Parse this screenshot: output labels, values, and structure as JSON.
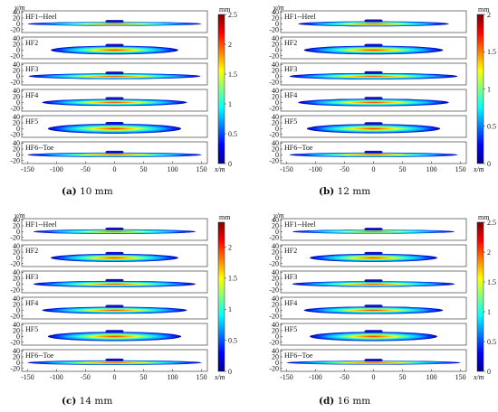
{
  "chart_data": [
    {
      "type": "heatmap",
      "caption": {
        "letter": "(a)",
        "text": "10 mm"
      },
      "colorbar": {
        "unit": "mm",
        "range": [
          0,
          2.5
        ],
        "ticks": [
          "0",
          "0.5",
          "1",
          "1.5",
          "2",
          "2.5"
        ]
      },
      "xlabel": "x/m",
      "ylabel": "y/m",
      "xlim": [
        -160,
        160
      ],
      "xticks": [
        "-150",
        "-100",
        "-50",
        "0",
        "50",
        "100",
        "150"
      ],
      "yticks": [
        "40",
        "20",
        "0",
        "-20"
      ],
      "panels": [
        {
          "label": "HF1--Heel",
          "half_length": 150,
          "height": 14,
          "peak": 2.0
        },
        {
          "label": "HF2",
          "half_length": 110,
          "height": 30,
          "peak": 2.5
        },
        {
          "label": "HF3",
          "half_length": 148,
          "height": 20,
          "peak": 2.2
        },
        {
          "label": "HF4",
          "half_length": 125,
          "height": 24,
          "peak": 2.4
        },
        {
          "label": "HF5",
          "half_length": 115,
          "height": 34,
          "peak": 2.5
        },
        {
          "label": "HF6--Toe",
          "half_length": 150,
          "height": 16,
          "peak": 2.1
        }
      ]
    },
    {
      "type": "heatmap",
      "caption": {
        "letter": "(b)",
        "text": "12 mm"
      },
      "colorbar": {
        "unit": "mm",
        "range": [
          0,
          2.0
        ],
        "ticks": [
          "0",
          "0.5",
          "1",
          "1.5",
          "2"
        ]
      },
      "xlabel": "x/m",
      "ylabel": "y/m",
      "xlim": [
        -160,
        160
      ],
      "xticks": [
        "-150",
        "-100",
        "-50",
        "0",
        "50",
        "100",
        "150"
      ],
      "yticks": [
        "40",
        "20",
        "0",
        "-20"
      ],
      "panels": [
        {
          "label": "HF1--Heel",
          "half_length": 130,
          "height": 18,
          "peak": 2.0
        },
        {
          "label": "HF2",
          "half_length": 120,
          "height": 30,
          "peak": 2.0
        },
        {
          "label": "HF3",
          "half_length": 145,
          "height": 22,
          "peak": 1.9
        },
        {
          "label": "HF4",
          "half_length": 130,
          "height": 26,
          "peak": 2.0
        },
        {
          "label": "HF5",
          "half_length": 115,
          "height": 32,
          "peak": 2.0
        },
        {
          "label": "HF6--Toe",
          "half_length": 145,
          "height": 16,
          "peak": 1.9
        }
      ]
    },
    {
      "type": "heatmap",
      "caption": {
        "letter": "(c)",
        "text": "14 mm"
      },
      "colorbar": {
        "unit": "mm",
        "range": [
          0,
          2.4
        ],
        "ticks": [
          "0",
          "0.5",
          "1",
          "1.5",
          "2"
        ]
      },
      "xlabel": "x/m",
      "ylabel": "y/m",
      "xlim": [
        -160,
        160
      ],
      "xticks": [
        "-150",
        "-100",
        "-50",
        "0",
        "50",
        "100",
        "150"
      ],
      "yticks": [
        "40",
        "20",
        "0",
        "-20"
      ],
      "panels": [
        {
          "label": "HF1--Heel",
          "half_length": 140,
          "height": 16,
          "peak": 2.2
        },
        {
          "label": "HF2",
          "half_length": 110,
          "height": 28,
          "peak": 2.4
        },
        {
          "label": "HF3",
          "half_length": 140,
          "height": 22,
          "peak": 2.2
        },
        {
          "label": "HF4",
          "half_length": 125,
          "height": 24,
          "peak": 2.3
        },
        {
          "label": "HF5",
          "half_length": 115,
          "height": 32,
          "peak": 2.4
        },
        {
          "label": "HF6--Toe",
          "half_length": 150,
          "height": 16,
          "peak": 2.0
        }
      ]
    },
    {
      "type": "heatmap",
      "caption": {
        "letter": "(d)",
        "text": "16 mm"
      },
      "colorbar": {
        "unit": "mm",
        "range": [
          0,
          2.5
        ],
        "ticks": [
          "0",
          "0.5",
          "1",
          "1.5",
          "2",
          "2.5"
        ]
      },
      "xlabel": "x/m",
      "ylabel": "y/m",
      "xlim": [
        -160,
        160
      ],
      "xticks": [
        "-150",
        "-100",
        "-50",
        "0",
        "50",
        "100",
        "150"
      ],
      "yticks": [
        "40",
        "20",
        "0",
        "-20"
      ],
      "panels": [
        {
          "label": "HF1--Heel",
          "half_length": 140,
          "height": 14,
          "peak": 2.3
        },
        {
          "label": "HF2",
          "half_length": 110,
          "height": 28,
          "peak": 2.5
        },
        {
          "label": "HF3",
          "half_length": 140,
          "height": 20,
          "peak": 2.3
        },
        {
          "label": "HF4",
          "half_length": 120,
          "height": 26,
          "peak": 2.4
        },
        {
          "label": "HF5",
          "half_length": 110,
          "height": 32,
          "peak": 2.5
        },
        {
          "label": "HF6--Toe",
          "half_length": 150,
          "height": 14,
          "peak": 2.2
        }
      ]
    }
  ]
}
